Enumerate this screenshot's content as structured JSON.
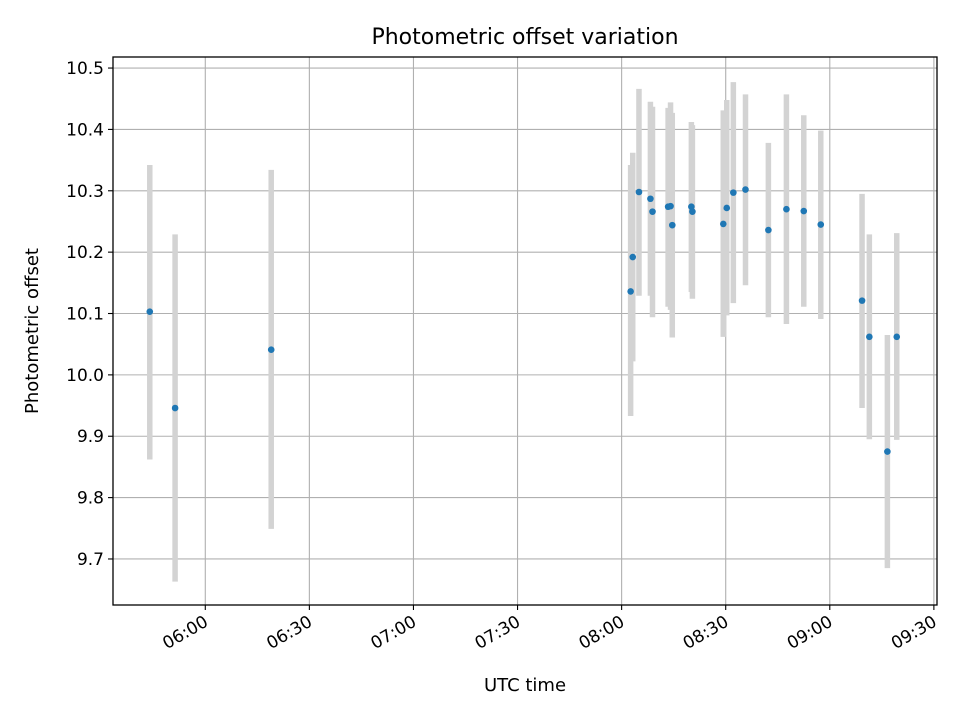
{
  "chart_data": {
    "type": "scatter",
    "title": "Photometric offset variation",
    "xlabel": "UTC time",
    "ylabel": "Photometric offset",
    "grid": true,
    "xlim_minutes": [
      333.4,
      570.9
    ],
    "ylim": [
      9.625,
      10.518
    ],
    "x_ticks": [
      {
        "minutes": 360,
        "label": "06:00"
      },
      {
        "minutes": 390,
        "label": "06:30"
      },
      {
        "minutes": 420,
        "label": "07:00"
      },
      {
        "minutes": 450,
        "label": "07:30"
      },
      {
        "minutes": 480,
        "label": "08:00"
      },
      {
        "minutes": 510,
        "label": "08:30"
      },
      {
        "minutes": 540,
        "label": "09:00"
      },
      {
        "minutes": 570,
        "label": "09:30"
      }
    ],
    "y_ticks": [
      {
        "value": 9.7,
        "label": "9.7"
      },
      {
        "value": 9.8,
        "label": "9.8"
      },
      {
        "value": 9.9,
        "label": "9.9"
      },
      {
        "value": 10.0,
        "label": "10.0"
      },
      {
        "value": 10.1,
        "label": "10.1"
      },
      {
        "value": 10.2,
        "label": "10.2"
      },
      {
        "value": 10.3,
        "label": "10.3"
      },
      {
        "value": 10.4,
        "label": "10.4"
      },
      {
        "value": 10.5,
        "label": "10.5"
      }
    ],
    "series": [
      {
        "name": "photometric offset",
        "marker_color": "#1f77b4",
        "errorbar_color": "#d3d3d3",
        "points": [
          {
            "time": "05:44",
            "minutes": 344.0,
            "y": 10.103,
            "ylow": 9.862,
            "yhigh": 10.342
          },
          {
            "time": "05:51",
            "minutes": 351.3,
            "y": 9.946,
            "ylow": 9.663,
            "yhigh": 10.229
          },
          {
            "time": "06:19",
            "minutes": 379.0,
            "y": 10.041,
            "ylow": 9.749,
            "yhigh": 10.334
          },
          {
            "time": "08:02",
            "minutes": 482.6,
            "y": 10.136,
            "ylow": 9.933,
            "yhigh": 10.342
          },
          {
            "time": "08:03",
            "minutes": 483.2,
            "y": 10.192,
            "ylow": 10.022,
            "yhigh": 10.362
          },
          {
            "time": "08:05",
            "minutes": 485.0,
            "y": 10.298,
            "ylow": 10.129,
            "yhigh": 10.466
          },
          {
            "time": "08:08",
            "minutes": 488.3,
            "y": 10.287,
            "ylow": 10.129,
            "yhigh": 10.445
          },
          {
            "time": "08:09",
            "minutes": 488.9,
            "y": 10.266,
            "ylow": 10.094,
            "yhigh": 10.437
          },
          {
            "time": "08:13",
            "minutes": 493.4,
            "y": 10.274,
            "ylow": 10.111,
            "yhigh": 10.435
          },
          {
            "time": "08:14",
            "minutes": 494.1,
            "y": 10.275,
            "ylow": 10.106,
            "yhigh": 10.444
          },
          {
            "time": "08:15",
            "minutes": 494.6,
            "y": 10.244,
            "ylow": 10.061,
            "yhigh": 10.427
          },
          {
            "time": "08:20",
            "minutes": 500.1,
            "y": 10.274,
            "ylow": 10.135,
            "yhigh": 10.412
          },
          {
            "time": "08:20",
            "minutes": 500.4,
            "y": 10.266,
            "ylow": 10.124,
            "yhigh": 10.407
          },
          {
            "time": "08:29",
            "minutes": 509.3,
            "y": 10.246,
            "ylow": 10.062,
            "yhigh": 10.431
          },
          {
            "time": "08:30",
            "minutes": 510.3,
            "y": 10.272,
            "ylow": 10.097,
            "yhigh": 10.448
          },
          {
            "time": "08:32",
            "minutes": 512.2,
            "y": 10.297,
            "ylow": 10.117,
            "yhigh": 10.477
          },
          {
            "time": "08:35",
            "minutes": 515.7,
            "y": 10.302,
            "ylow": 10.146,
            "yhigh": 10.457
          },
          {
            "time": "08:42",
            "minutes": 522.3,
            "y": 10.236,
            "ylow": 10.094,
            "yhigh": 10.378
          },
          {
            "time": "08:47",
            "minutes": 527.5,
            "y": 10.27,
            "ylow": 10.083,
            "yhigh": 10.457
          },
          {
            "time": "08:52",
            "minutes": 532.5,
            "y": 10.267,
            "ylow": 10.111,
            "yhigh": 10.423
          },
          {
            "time": "08:57",
            "minutes": 537.4,
            "y": 10.245,
            "ylow": 10.091,
            "yhigh": 10.398
          },
          {
            "time": "09:09",
            "minutes": 549.3,
            "y": 10.121,
            "ylow": 9.946,
            "yhigh": 10.295
          },
          {
            "time": "09:11",
            "minutes": 551.4,
            "y": 10.062,
            "ylow": 9.895,
            "yhigh": 10.229
          },
          {
            "time": "09:16",
            "minutes": 556.6,
            "y": 9.875,
            "ylow": 9.685,
            "yhigh": 10.065
          },
          {
            "time": "09:19",
            "minutes": 559.3,
            "y": 10.062,
            "ylow": 9.894,
            "yhigh": 10.231
          }
        ]
      }
    ]
  }
}
